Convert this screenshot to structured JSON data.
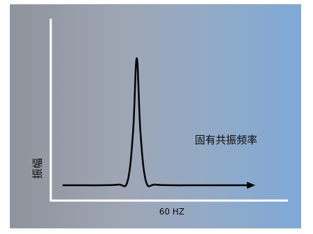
{
  "chart_data": {
    "type": "line",
    "title": "",
    "xlabel": "60 HZ",
    "ylabel": "振幅",
    "annotation": "固有共振频率",
    "x": [
      0,
      10,
      20,
      30,
      35,
      38,
      40,
      42,
      45,
      50,
      60,
      70,
      80,
      90,
      100
    ],
    "y": [
      0,
      0,
      0,
      0.5,
      3,
      40,
      95,
      40,
      3,
      0.5,
      0,
      0,
      0,
      0,
      0
    ],
    "grid": false,
    "colors": {
      "curve": "#000000",
      "axes": "#ffffff",
      "background_start": "#8f939b",
      "background_end": "#7fa9d8"
    }
  }
}
